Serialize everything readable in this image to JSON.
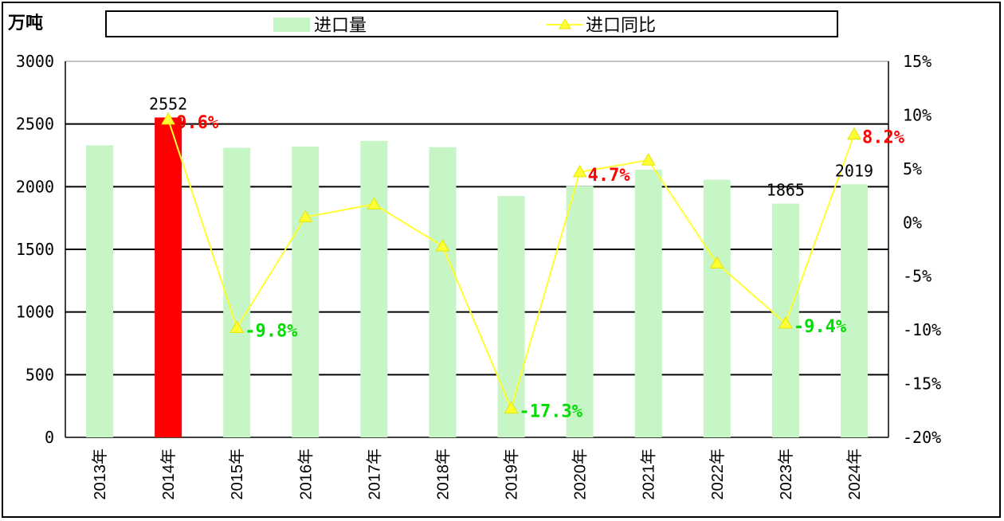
{
  "unit_label": "万吨",
  "legend": {
    "bar_label": "进口量",
    "line_label": "进口同比"
  },
  "colors": {
    "bar": "#c6f5c6",
    "bar_highlight": "#ff0000",
    "line": "#ffff33",
    "positive_label": "#ff0000",
    "negative_label": "#00dd00"
  },
  "chart_data": {
    "type": "bar",
    "categories": [
      "2013年",
      "2014年",
      "2015年",
      "2016年",
      "2017年",
      "2018年",
      "2019年",
      "2020年",
      "2021年",
      "2022年",
      "2023年",
      "2024年"
    ],
    "series": [
      {
        "name": "进口量",
        "type": "bar",
        "axis": "left",
        "values": [
          2330,
          2552,
          2310,
          2320,
          2365,
          2315,
          1925,
          2005,
          2135,
          2055,
          1865,
          2019
        ],
        "highlight_index": 1
      },
      {
        "name": "进口同比",
        "type": "line",
        "axis": "right",
        "unit": "%",
        "values": [
          null,
          9.6,
          -9.8,
          0.5,
          1.7,
          -2.2,
          -17.3,
          4.7,
          5.8,
          -3.8,
          -9.4,
          8.2
        ]
      }
    ],
    "ylim_left": [
      0,
      3000
    ],
    "yticks_left": [
      "0",
      "500",
      "1000",
      "1500",
      "2000",
      "2500",
      "3000"
    ],
    "ylim_right": [
      -20,
      15
    ],
    "yticks_right": [
      "-20%",
      "-15%",
      "-10%",
      "-5%",
      "0%",
      "5%",
      "10%",
      "15%"
    ],
    "bar_labels": [
      {
        "index": 1,
        "text": "2552"
      },
      {
        "index": 10,
        "text": "1865"
      },
      {
        "index": 11,
        "text": "2019"
      }
    ],
    "line_labels": [
      {
        "index": 1,
        "text": "9.6%"
      },
      {
        "index": 2,
        "text": "-9.8%"
      },
      {
        "index": 6,
        "text": "-17.3%"
      },
      {
        "index": 7,
        "text": "4.7%"
      },
      {
        "index": 10,
        "text": "-9.4%"
      },
      {
        "index": 11,
        "text": "8.2%"
      }
    ],
    "legend_position": "top"
  }
}
